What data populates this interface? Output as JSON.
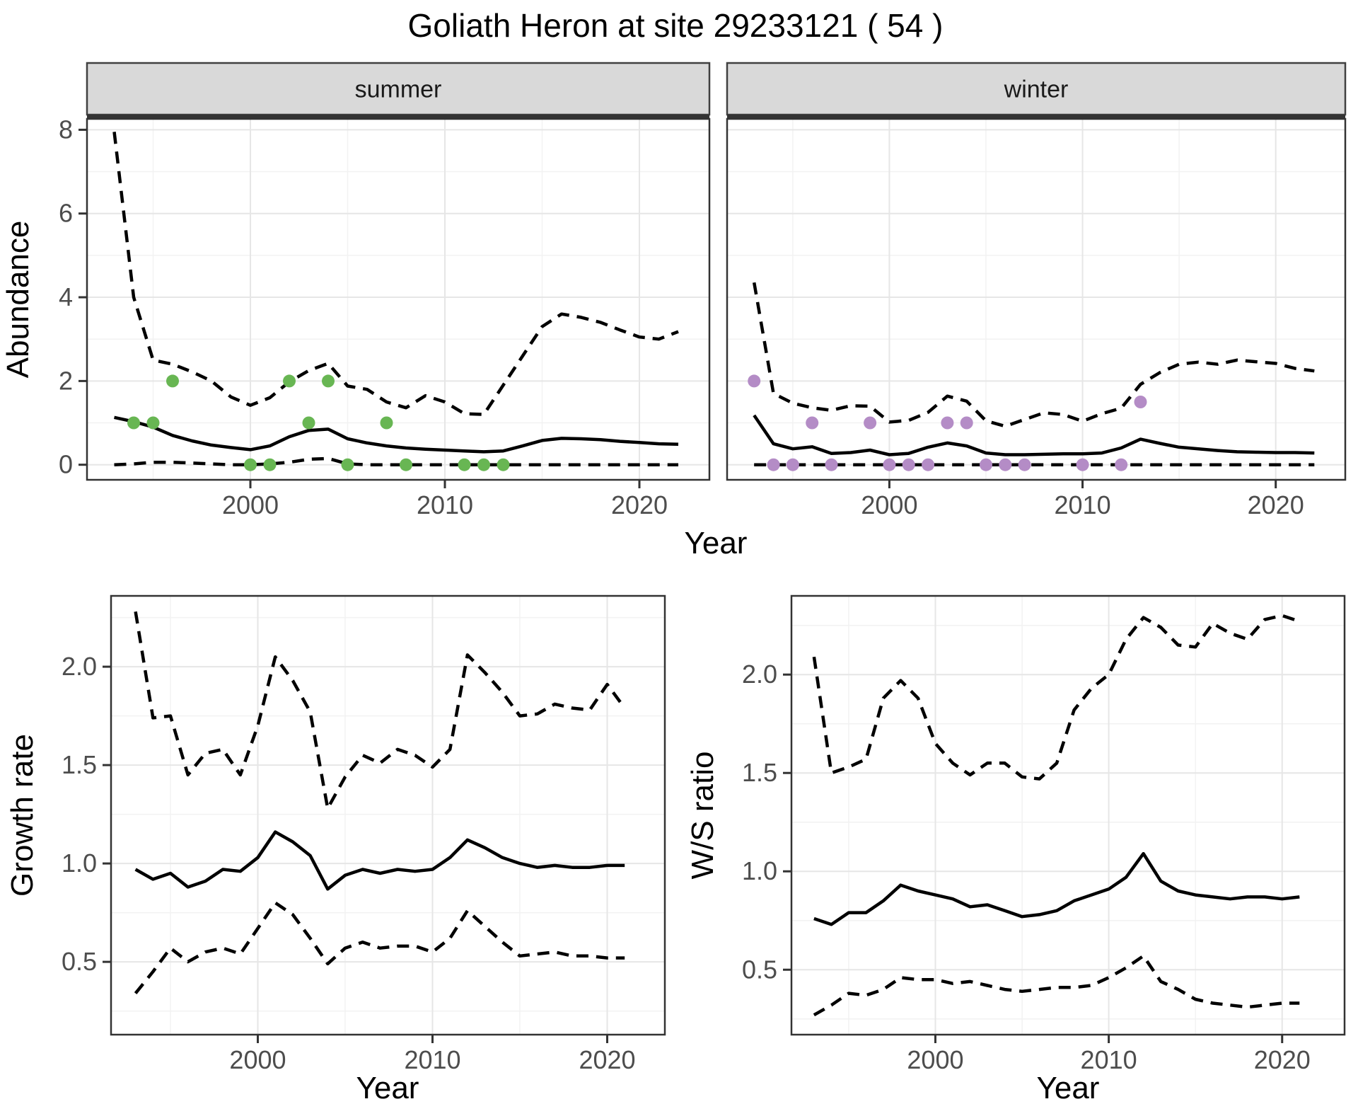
{
  "title": "Goliath Heron at site 29233121 ( 54 )",
  "colors": {
    "summer_points": "#68b653",
    "winter_points": "#b48cc6",
    "line": "#000000",
    "axis_text": "#4d4d4d",
    "axis_title": "#000000",
    "strip_bg": "#d9d9d9",
    "strip_border": "#404040",
    "panel_border": "#333333",
    "grid_major": "#e6e6e6",
    "grid_minor": "#f2f2f2",
    "background": "#ffffff"
  },
  "chart_data": {
    "type": "line",
    "figure_title": "Goliath Heron at site 29233121 ( 54 )",
    "shared_x_label": "Year",
    "panels": [
      {
        "id": "abundance-summer",
        "facet_label": "summer",
        "ylabel": "Abundance",
        "xlabel": "Year",
        "xlim": [
          1991.6,
          2023.6
        ],
        "ylim": [
          -0.36,
          8.26
        ],
        "xticks": {
          "values": [
            2000,
            2010,
            2020
          ],
          "labels": [
            "2000",
            "2010",
            "2020"
          ]
        },
        "yticks": {
          "values": [
            0,
            2,
            4,
            6,
            8
          ],
          "labels": [
            "0",
            "2",
            "4",
            "6",
            "8"
          ]
        },
        "x": [
          1993,
          1994,
          1995,
          1996,
          1997,
          1998,
          1999,
          2000,
          2001,
          2002,
          2003,
          2004,
          2005,
          2006,
          2007,
          2008,
          2009,
          2010,
          2011,
          2012,
          2013,
          2014,
          2015,
          2016,
          2017,
          2018,
          2019,
          2020,
          2021,
          2022
        ],
        "series": [
          {
            "name": "median",
            "style": "solid",
            "values": [
              1.13,
              1.03,
              0.9,
              0.7,
              0.57,
              0.47,
              0.41,
              0.36,
              0.45,
              0.67,
              0.82,
              0.85,
              0.62,
              0.52,
              0.45,
              0.4,
              0.37,
              0.35,
              0.33,
              0.31,
              0.33,
              0.45,
              0.58,
              0.63,
              0.62,
              0.6,
              0.56,
              0.53,
              0.5,
              0.49
            ]
          },
          {
            "name": "ci_upper",
            "style": "dashed",
            "values": [
              7.95,
              4.0,
              2.5,
              2.4,
              2.22,
              2.0,
              1.62,
              1.42,
              1.6,
              1.98,
              2.25,
              2.42,
              1.88,
              1.8,
              1.5,
              1.36,
              1.65,
              1.5,
              1.22,
              1.2,
              1.9,
              2.6,
              3.3,
              3.6,
              3.52,
              3.4,
              3.22,
              3.05,
              3.0,
              3.18
            ]
          },
          {
            "name": "ci_lower",
            "style": "dashed",
            "values": [
              0,
              0.02,
              0.06,
              0.06,
              0.04,
              0.02,
              0,
              0,
              0.02,
              0.06,
              0.13,
              0.15,
              0.02,
              0,
              0,
              0,
              0,
              0,
              0,
              0,
              0,
              0,
              0,
              0,
              0,
              0,
              0,
              0,
              0,
              0
            ]
          }
        ],
        "points": {
          "color_key": "summer_points",
          "data": [
            [
              1994,
              1
            ],
            [
              1995,
              1
            ],
            [
              1996,
              2
            ],
            [
              2000,
              0
            ],
            [
              2001,
              0
            ],
            [
              2002,
              2
            ],
            [
              2003,
              1
            ],
            [
              2004,
              2
            ],
            [
              2005,
              0
            ],
            [
              2007,
              1
            ],
            [
              2008,
              0
            ],
            [
              2011,
              0
            ],
            [
              2012,
              0
            ],
            [
              2013,
              0
            ]
          ]
        }
      },
      {
        "id": "abundance-winter",
        "facet_label": "winter",
        "ylabel": "",
        "xlabel": "Year",
        "xlim": [
          1991.6,
          2023.6
        ],
        "ylim": [
          -0.36,
          8.26
        ],
        "xticks": {
          "values": [
            2000,
            2010,
            2020
          ],
          "labels": [
            "2000",
            "2010",
            "2020"
          ]
        },
        "yticks": {
          "values": [
            0,
            2,
            4,
            6,
            8
          ],
          "labels": [
            "0",
            "2",
            "4",
            "6",
            "8"
          ]
        },
        "x": [
          1993,
          1994,
          1995,
          1996,
          1997,
          1998,
          1999,
          2000,
          2001,
          2002,
          2003,
          2004,
          2005,
          2006,
          2007,
          2008,
          2009,
          2010,
          2011,
          2012,
          2013,
          2014,
          2015,
          2016,
          2017,
          2018,
          2019,
          2020,
          2021,
          2022
        ],
        "series": [
          {
            "name": "median",
            "style": "solid",
            "values": [
              1.18,
              0.5,
              0.38,
              0.43,
              0.27,
              0.29,
              0.35,
              0.24,
              0.27,
              0.42,
              0.52,
              0.45,
              0.28,
              0.24,
              0.24,
              0.25,
              0.26,
              0.26,
              0.28,
              0.4,
              0.61,
              0.51,
              0.42,
              0.38,
              0.34,
              0.31,
              0.3,
              0.29,
              0.29,
              0.28
            ]
          },
          {
            "name": "ci_upper",
            "style": "dashed",
            "values": [
              4.35,
              1.7,
              1.47,
              1.36,
              1.3,
              1.41,
              1.4,
              1.02,
              1.06,
              1.25,
              1.64,
              1.52,
              1.05,
              0.92,
              1.08,
              1.24,
              1.2,
              1.04,
              1.22,
              1.35,
              1.92,
              2.2,
              2.4,
              2.45,
              2.4,
              2.5,
              2.46,
              2.42,
              2.3,
              2.24
            ]
          },
          {
            "name": "ci_lower",
            "style": "dashed",
            "values": [
              0,
              0,
              0,
              0,
              0,
              0,
              0,
              0,
              0,
              0,
              0,
              0,
              0,
              0,
              0,
              0,
              0,
              0,
              0,
              0,
              0,
              0,
              0,
              0,
              0,
              0,
              0,
              0,
              0,
              0
            ]
          }
        ],
        "points": {
          "color_key": "winter_points",
          "data": [
            [
              1993,
              2
            ],
            [
              1994,
              0
            ],
            [
              1995,
              0
            ],
            [
              1996,
              1
            ],
            [
              1997,
              0
            ],
            [
              1999,
              1
            ],
            [
              2000,
              0
            ],
            [
              2001,
              0
            ],
            [
              2002,
              0
            ],
            [
              2003,
              1
            ],
            [
              2004,
              1
            ],
            [
              2005,
              0
            ],
            [
              2006,
              0
            ],
            [
              2007,
              0
            ],
            [
              2010,
              0
            ],
            [
              2012,
              0
            ],
            [
              2013,
              1.5
            ]
          ]
        }
      },
      {
        "id": "growth-rate",
        "facet_label": "",
        "ylabel": "Growth rate",
        "xlabel": "Year",
        "xlim": [
          1991.6,
          2023.3
        ],
        "ylim": [
          0.13,
          2.36
        ],
        "xticks": {
          "values": [
            2000,
            2010,
            2020
          ],
          "labels": [
            "2000",
            "2010",
            "2020"
          ]
        },
        "yticks": {
          "values": [
            0.5,
            1.0,
            1.5,
            2.0
          ],
          "labels": [
            "0.5",
            "1.0",
            "1.5",
            "2.0"
          ]
        },
        "x": [
          1993,
          1994,
          1995,
          1996,
          1997,
          1998,
          1999,
          2000,
          2001,
          2002,
          2003,
          2004,
          2005,
          2006,
          2007,
          2008,
          2009,
          2010,
          2011,
          2012,
          2013,
          2014,
          2015,
          2016,
          2017,
          2018,
          2019,
          2020,
          2021
        ],
        "series": [
          {
            "name": "median",
            "style": "solid",
            "values": [
              0.97,
              0.92,
              0.95,
              0.88,
              0.91,
              0.97,
              0.96,
              1.03,
              1.16,
              1.11,
              1.04,
              0.87,
              0.94,
              0.97,
              0.95,
              0.97,
              0.96,
              0.97,
              1.03,
              1.12,
              1.08,
              1.03,
              1.0,
              0.98,
              0.99,
              0.98,
              0.98,
              0.99,
              0.99
            ]
          },
          {
            "name": "ci_upper",
            "style": "dashed",
            "values": [
              2.28,
              1.74,
              1.75,
              1.45,
              1.56,
              1.58,
              1.45,
              1.7,
              2.05,
              1.93,
              1.77,
              1.28,
              1.44,
              1.55,
              1.51,
              1.58,
              1.55,
              1.49,
              1.58,
              2.06,
              1.97,
              1.87,
              1.75,
              1.76,
              1.81,
              1.79,
              1.78,
              1.91,
              1.79
            ]
          },
          {
            "name": "ci_lower",
            "style": "dashed",
            "values": [
              0.34,
              0.45,
              0.57,
              0.5,
              0.55,
              0.57,
              0.54,
              0.67,
              0.8,
              0.74,
              0.62,
              0.49,
              0.57,
              0.6,
              0.57,
              0.58,
              0.58,
              0.55,
              0.62,
              0.76,
              0.68,
              0.6,
              0.53,
              0.54,
              0.55,
              0.53,
              0.53,
              0.52,
              0.52
            ]
          }
        ],
        "points": {
          "color_key": "",
          "data": []
        }
      },
      {
        "id": "ws-ratio",
        "facet_label": "",
        "ylabel": "W/S ratio",
        "xlabel": "Year",
        "xlim": [
          1991.7,
          2023.6
        ],
        "ylim": [
          0.17,
          2.4
        ],
        "xticks": {
          "values": [
            2000,
            2010,
            2020
          ],
          "labels": [
            "2000",
            "2010",
            "2020"
          ]
        },
        "yticks": {
          "values": [
            0.5,
            1.0,
            1.5,
            2.0
          ],
          "labels": [
            "0.5",
            "1.0",
            "1.5",
            "2.0"
          ]
        },
        "x": [
          1993,
          1994,
          1995,
          1996,
          1997,
          1998,
          1999,
          2000,
          2001,
          2002,
          2003,
          2004,
          2005,
          2006,
          2007,
          2008,
          2009,
          2010,
          2011,
          2012,
          2013,
          2014,
          2015,
          2016,
          2017,
          2018,
          2019,
          2020,
          2021
        ],
        "series": [
          {
            "name": "median",
            "style": "solid",
            "values": [
              0.76,
              0.73,
              0.79,
              0.79,
              0.85,
              0.93,
              0.9,
              0.88,
              0.86,
              0.82,
              0.83,
              0.8,
              0.77,
              0.78,
              0.8,
              0.85,
              0.88,
              0.91,
              0.97,
              1.09,
              0.95,
              0.9,
              0.88,
              0.87,
              0.86,
              0.87,
              0.87,
              0.86,
              0.87
            ]
          },
          {
            "name": "ci_upper",
            "style": "dashed",
            "values": [
              2.09,
              1.5,
              1.53,
              1.57,
              1.88,
              1.97,
              1.88,
              1.65,
              1.55,
              1.49,
              1.55,
              1.55,
              1.48,
              1.47,
              1.55,
              1.82,
              1.93,
              2.0,
              2.18,
              2.29,
              2.24,
              2.15,
              2.14,
              2.26,
              2.21,
              2.18,
              2.28,
              2.3,
              2.27
            ]
          },
          {
            "name": "ci_lower",
            "style": "dashed",
            "values": [
              0.27,
              0.32,
              0.38,
              0.37,
              0.4,
              0.46,
              0.45,
              0.45,
              0.43,
              0.44,
              0.42,
              0.4,
              0.39,
              0.4,
              0.41,
              0.41,
              0.42,
              0.46,
              0.51,
              0.57,
              0.44,
              0.4,
              0.35,
              0.33,
              0.32,
              0.31,
              0.32,
              0.33,
              0.33
            ]
          }
        ],
        "points": {
          "color_key": "",
          "data": []
        }
      }
    ]
  }
}
